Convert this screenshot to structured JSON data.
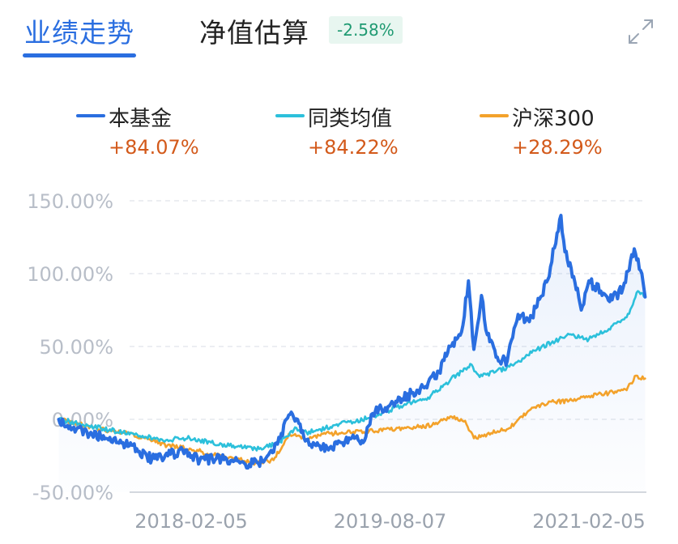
{
  "tabs": {
    "active": "业绩走势",
    "inactive": "净值估算",
    "badge": "-2.58%"
  },
  "colors": {
    "accent": "#2a6ee0",
    "fund": "#2a6ee0",
    "category_avg": "#2cc0db",
    "index": "#f3a22b",
    "positive": "#d35a1b",
    "badge_text": "#1f9a72"
  },
  "icons": {
    "expand": "expand-icon"
  },
  "legend": [
    {
      "name": "本基金",
      "value": "+84.07%"
    },
    {
      "name": "同类均值",
      "value": "+84.22%"
    },
    {
      "name": "沪深300",
      "value": "+28.29%"
    }
  ],
  "chart_data": {
    "type": "line",
    "ylim": [
      -50,
      150
    ],
    "yticks": [
      150,
      100,
      50,
      0,
      -50
    ],
    "ytick_labels": [
      "150.00%",
      "100.00%",
      "50.00%",
      "0.00%",
      "-50.00%"
    ],
    "x_date_range": [
      "2017-02-05",
      "2021-02-05"
    ],
    "xtick_labels": [
      "2018-02-05",
      "2019-08-07",
      "2021-02-05"
    ],
    "xtick_dates": [
      "2018-02-05",
      "2019-08-07",
      "2021-02-05"
    ],
    "grid": true,
    "series": [
      {
        "name": "本基金",
        "points": [
          [
            "2017-02-05",
            0
          ],
          [
            "2017-03-15",
            -6
          ],
          [
            "2017-05-01",
            -10
          ],
          [
            "2017-06-15",
            -13
          ],
          [
            "2017-08-01",
            -16
          ],
          [
            "2017-09-15",
            -22
          ],
          [
            "2017-10-20",
            -27
          ],
          [
            "2017-12-10",
            -24
          ],
          [
            "2018-01-20",
            -21
          ],
          [
            "2018-03-01",
            -28
          ],
          [
            "2018-04-15",
            -27
          ],
          [
            "2018-06-01",
            -29
          ],
          [
            "2018-07-15",
            -31
          ],
          [
            "2018-08-20",
            -29
          ],
          [
            "2018-10-01",
            -17
          ],
          [
            "2018-11-01",
            3
          ],
          [
            "2018-11-25",
            0
          ],
          [
            "2018-12-20",
            -14
          ],
          [
            "2019-01-15",
            -18
          ],
          [
            "2019-02-15",
            -20
          ],
          [
            "2019-03-25",
            -16
          ],
          [
            "2019-05-01",
            -13
          ],
          [
            "2019-05-25",
            -16
          ],
          [
            "2019-06-20",
            4
          ],
          [
            "2019-07-25",
            8
          ],
          [
            "2019-09-10",
            14
          ],
          [
            "2019-10-20",
            20
          ],
          [
            "2019-11-20",
            25
          ],
          [
            "2019-12-20",
            33
          ],
          [
            "2020-01-20",
            50
          ],
          [
            "2020-02-20",
            60
          ],
          [
            "2020-03-10",
            95
          ],
          [
            "2020-03-25",
            48
          ],
          [
            "2020-04-15",
            85
          ],
          [
            "2020-05-01",
            58
          ],
          [
            "2020-06-01",
            40
          ],
          [
            "2020-06-25",
            40
          ],
          [
            "2020-07-25",
            72
          ],
          [
            "2020-08-25",
            67
          ],
          [
            "2020-09-25",
            84
          ],
          [
            "2020-10-15",
            96
          ],
          [
            "2020-11-20",
            140
          ],
          [
            "2020-12-01",
            115
          ],
          [
            "2020-12-25",
            98
          ],
          [
            "2021-01-15",
            75
          ],
          [
            "2021-02-05",
            95
          ],
          [
            "2021-03-10",
            88
          ],
          [
            "2021-04-10",
            82
          ],
          [
            "2021-05-10",
            90
          ],
          [
            "2021-06-10",
            117
          ],
          [
            "2021-07-01",
            100
          ],
          [
            "2021-07-10",
            84
          ]
        ]
      },
      {
        "name": "同类均值",
        "points": [
          [
            "2017-02-05",
            0
          ],
          [
            "2017-04-01",
            -3
          ],
          [
            "2017-06-01",
            -6
          ],
          [
            "2017-08-01",
            -9
          ],
          [
            "2017-10-01",
            -12
          ],
          [
            "2017-12-01",
            -14
          ],
          [
            "2018-02-01",
            -13
          ],
          [
            "2018-04-01",
            -16
          ],
          [
            "2018-06-01",
            -18
          ],
          [
            "2018-08-01",
            -20
          ],
          [
            "2018-10-01",
            -17
          ],
          [
            "2018-11-15",
            -7
          ],
          [
            "2018-12-20",
            -9
          ],
          [
            "2019-02-10",
            -6
          ],
          [
            "2019-04-10",
            -2
          ],
          [
            "2019-06-10",
            1
          ],
          [
            "2019-07-20",
            5
          ],
          [
            "2019-09-20",
            10
          ],
          [
            "2019-11-20",
            15
          ],
          [
            "2020-01-20",
            27
          ],
          [
            "2020-02-20",
            33
          ],
          [
            "2020-03-15",
            38
          ],
          [
            "2020-04-10",
            29
          ],
          [
            "2020-05-20",
            32
          ],
          [
            "2020-07-15",
            38
          ],
          [
            "2020-09-15",
            48
          ],
          [
            "2020-11-15",
            55
          ],
          [
            "2020-12-20",
            58
          ],
          [
            "2021-02-05",
            55
          ],
          [
            "2021-04-01",
            62
          ],
          [
            "2021-05-20",
            70
          ],
          [
            "2021-06-20",
            88
          ],
          [
            "2021-07-10",
            84
          ]
        ]
      },
      {
        "name": "沪深300",
        "points": [
          [
            "2017-02-05",
            0
          ],
          [
            "2017-04-01",
            -3
          ],
          [
            "2017-06-01",
            -7
          ],
          [
            "2017-08-01",
            -9
          ],
          [
            "2017-10-01",
            -13
          ],
          [
            "2017-12-01",
            -18
          ],
          [
            "2018-02-01",
            -20
          ],
          [
            "2018-04-01",
            -24
          ],
          [
            "2018-06-01",
            -27
          ],
          [
            "2018-08-01",
            -30
          ],
          [
            "2018-09-20",
            -28
          ],
          [
            "2018-11-01",
            -10
          ],
          [
            "2018-12-20",
            -14
          ],
          [
            "2019-02-10",
            -10
          ],
          [
            "2019-04-10",
            -9
          ],
          [
            "2019-06-10",
            -8
          ],
          [
            "2019-08-07",
            -7
          ],
          [
            "2019-10-01",
            -6
          ],
          [
            "2019-12-01",
            -4
          ],
          [
            "2020-01-20",
            2
          ],
          [
            "2020-03-01",
            -1
          ],
          [
            "2020-03-25",
            -13
          ],
          [
            "2020-05-01",
            -10
          ],
          [
            "2020-07-01",
            -6
          ],
          [
            "2020-09-01",
            8
          ],
          [
            "2020-11-01",
            12
          ],
          [
            "2020-12-20",
            13
          ],
          [
            "2021-02-05",
            16
          ],
          [
            "2021-04-01",
            18
          ],
          [
            "2021-05-20",
            20
          ],
          [
            "2021-06-15",
            30
          ],
          [
            "2021-07-10",
            28
          ]
        ]
      }
    ]
  }
}
